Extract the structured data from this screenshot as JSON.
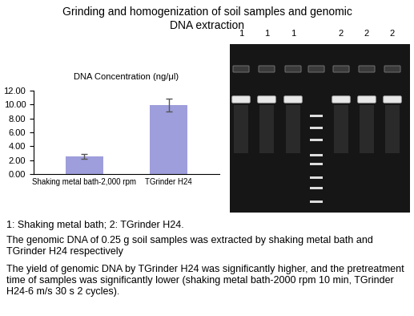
{
  "header": {
    "title": "Grinding and homogenization of soil samples and genomic DNA extraction"
  },
  "chart_data": {
    "type": "bar",
    "title": "DNA Concentration (ng/μl)",
    "categories": [
      "Shaking metal bath-2,000 rpm",
      "TGrinder H24"
    ],
    "values": [
      2.55,
      9.95
    ],
    "errors": [
      0.35,
      0.95
    ],
    "color": "#9e9edc",
    "ylim": [
      0,
      12
    ],
    "yticks": [
      {
        "value": 0,
        "label": "0.00"
      },
      {
        "value": 2,
        "label": "2.00"
      },
      {
        "value": 4,
        "label": "4.00"
      },
      {
        "value": 6,
        "label": "6.00"
      },
      {
        "value": 8,
        "label": "8.00"
      },
      {
        "value": 10,
        "label": "10.00"
      },
      {
        "value": 12,
        "label": "12.00"
      }
    ],
    "grid": false
  },
  "gel": {
    "lane_labels": [
      "1",
      "1",
      "1",
      "2",
      "2",
      "2"
    ]
  },
  "caption": [
    "1: Shaking metal bath; 2: TGrinder H24.",
    "The genomic DNA of 0.25 g soil samples was extracted by shaking metal bath and TGrinder H24 respectively",
    "The yield of genomic DNA by TGrinder H24 was significantly higher, and the pretreatment time of samples was significantly lower (shaking metal bath-2000 rpm 10 min, TGrinder H24-6 m/s 30 s 2 cycles)."
  ]
}
